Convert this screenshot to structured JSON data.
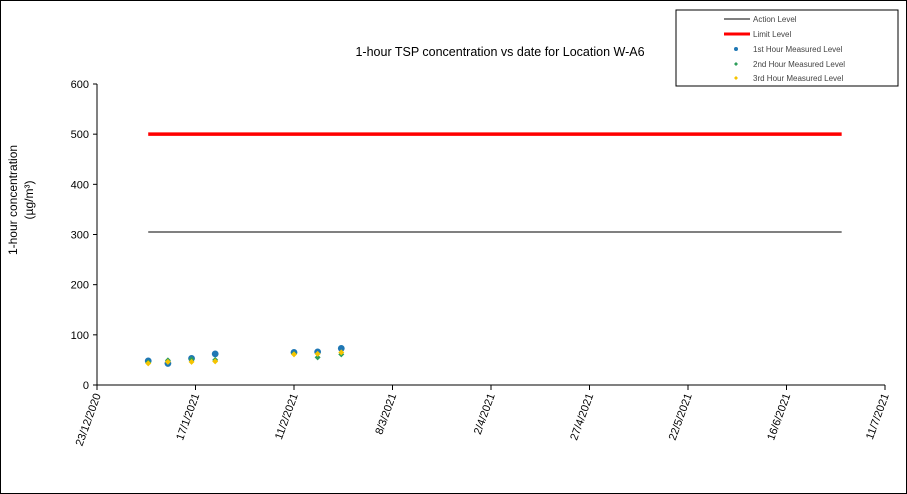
{
  "chart_data": {
    "type": "scatter",
    "title": "1-hour TSP concentration vs date for Location  W-A6",
    "ylabel_line1": "1-hour concentration",
    "ylabel_line2": "(µg/m³)",
    "xlabel": "",
    "ylim": [
      0,
      600
    ],
    "y_ticks": [
      "0",
      "100",
      "200",
      "300",
      "400",
      "500",
      "600"
    ],
    "xlim": [
      "23/12/2020",
      "11/7/2021"
    ],
    "x_tick_labels": [
      "23/12/2020",
      "17/1/2021",
      "11/2/2021",
      "8/3/2021",
      "2/4/2021",
      "27/4/2021",
      "22/5/2021",
      "16/6/2021",
      "11/7/2021"
    ],
    "grid": false,
    "legend_position": "top-right",
    "action_level": {
      "name": "Action Level",
      "color": "#000000",
      "value": 305,
      "x": [
        "5/1/2021",
        "30/6/2021"
      ]
    },
    "limit_level": {
      "name": "Limit Level",
      "color": "#ff0000",
      "value": 500,
      "x": [
        "5/1/2021",
        "30/6/2021"
      ]
    },
    "series": [
      {
        "name": "1st Hour Measured Level",
        "marker": "circle",
        "color": "#1f77b4",
        "x": [
          "5/1/2021",
          "10/1/2021",
          "16/1/2021",
          "22/1/2021",
          "11/2/2021",
          "17/2/2021",
          "23/2/2021"
        ],
        "y": [
          48,
          43,
          53,
          62,
          65,
          66,
          73
        ]
      },
      {
        "name": "2nd Hour Measured Level",
        "marker": "diamond",
        "color": "#2e9e5b",
        "x": [
          "5/1/2021",
          "10/1/2021",
          "16/1/2021",
          "22/1/2021",
          "11/2/2021",
          "17/2/2021",
          "23/2/2021"
        ],
        "y": [
          45,
          49,
          51,
          50,
          62,
          55,
          61
        ]
      },
      {
        "name": "3rd Hour Measured Level",
        "marker": "diamond",
        "color": "#f5c400",
        "x": [
          "5/1/2021",
          "10/1/2021",
          "16/1/2021",
          "22/1/2021",
          "11/2/2021",
          "17/2/2021",
          "23/2/2021"
        ],
        "y": [
          43,
          46,
          46,
          47,
          61,
          62,
          65
        ]
      }
    ]
  }
}
